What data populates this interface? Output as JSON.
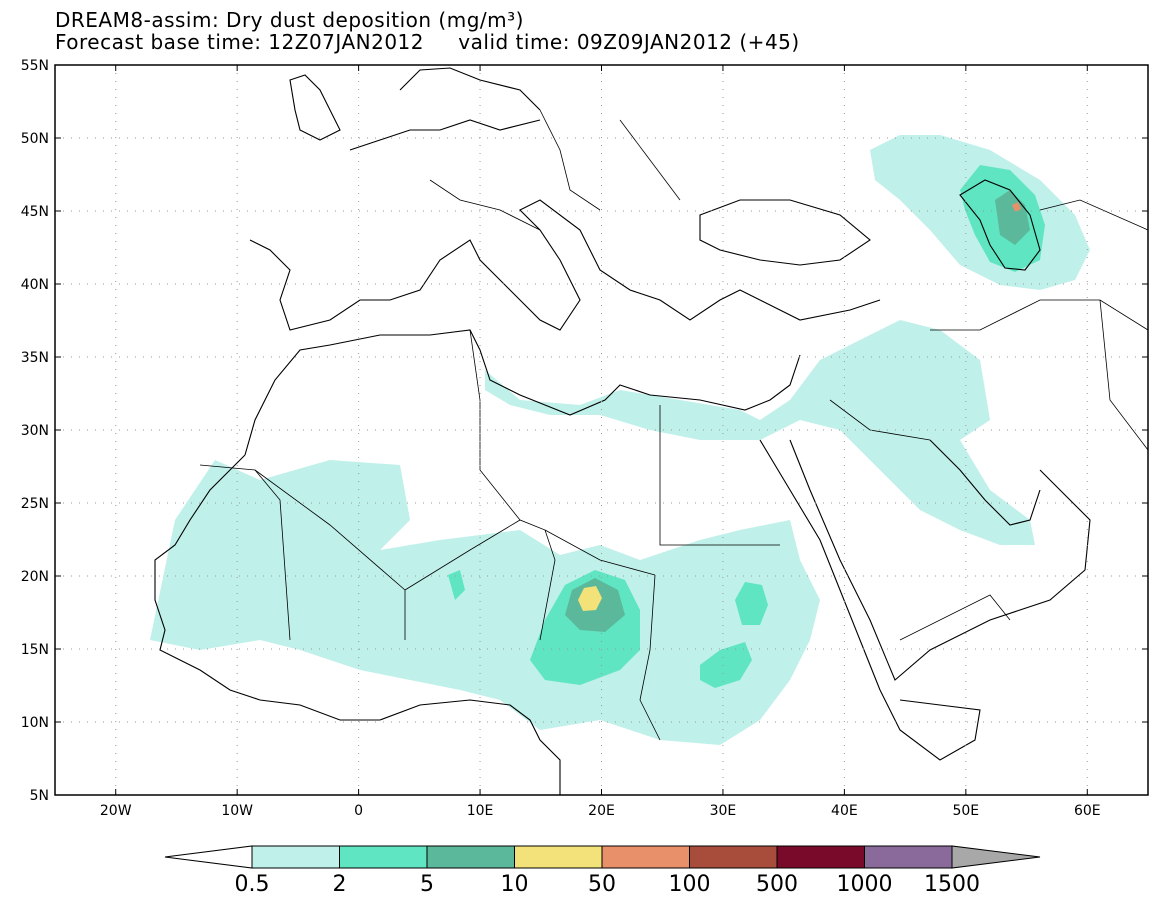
{
  "title": {
    "line1_left": "DREAM8-assim: Dry dust deposition (mg/m³)",
    "line2_left": "Forecast base time: 12Z07JAN2012",
    "line2_right": "valid time: 09Z09JAN2012 (+45)"
  },
  "map": {
    "lon_range": [
      -25,
      65
    ],
    "lat_range": [
      5,
      55
    ],
    "lat_ticks": [
      "55N",
      "50N",
      "45N",
      "40N",
      "35N",
      "30N",
      "25N",
      "20N",
      "15N",
      "10N",
      "5N"
    ],
    "lon_ticks": [
      "20W",
      "10W",
      "0",
      "10E",
      "20E",
      "30E",
      "40E",
      "50E",
      "60E"
    ]
  },
  "colorbar": {
    "labels": [
      "0.5",
      "2",
      "5",
      "10",
      "50",
      "100",
      "500",
      "1000",
      "1500"
    ],
    "colors": [
      "#bff0ea",
      "#5fe5c2",
      "#5cb89a",
      "#f2e279",
      "#e8906a",
      "#a84c3c",
      "#7a0a2a",
      "#8a6a9a"
    ],
    "under_color": "#ffffff",
    "over_color": "#a8a8a8"
  }
}
